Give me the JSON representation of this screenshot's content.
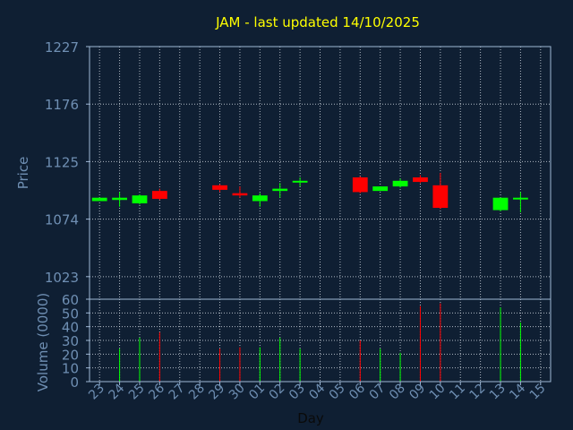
{
  "chart_data": {
    "type": "candlestick",
    "title": "JAM - last updated 14/10/2025",
    "xlabel": "Day",
    "ylabel_price": "Price",
    "ylabel_volume": "Volume (0000)",
    "price_ticks": [
      1023,
      1074,
      1125,
      1176,
      1227
    ],
    "price_ylim": [
      1003,
      1227
    ],
    "volume_ticks": [
      0,
      10,
      20,
      30,
      40,
      50,
      60
    ],
    "volume_ylim": [
      0,
      60
    ],
    "x_tick_labels": [
      "23",
      "24",
      "25",
      "26",
      "27",
      "28",
      "29",
      "30",
      "01",
      "02",
      "03",
      "04",
      "05",
      "06",
      "07",
      "08",
      "09",
      "10",
      "11",
      "12",
      "13",
      "14",
      "15"
    ],
    "grid": true,
    "colors": {
      "up": "#00ff00",
      "down": "#ff0000",
      "background": "#0f1f33",
      "title": "#ffff00",
      "axis_text": "#6f8fb3",
      "frame": "#9fb8d6"
    },
    "candles": [
      {
        "day": "23",
        "open": 1090,
        "close": 1093,
        "high": 1093,
        "low": 1090,
        "volume": 0
      },
      {
        "day": "24",
        "open": 1091,
        "close": 1093,
        "high": 1098,
        "low": 1085,
        "volume": 24
      },
      {
        "day": "25",
        "open": 1088,
        "close": 1095,
        "high": 1096,
        "low": 1087,
        "volume": 32
      },
      {
        "day": "26",
        "open": 1099,
        "close": 1092,
        "high": 1101,
        "low": 1091,
        "volume": 36
      },
      {
        "day": "29",
        "open": 1104,
        "close": 1100,
        "high": 1105,
        "low": 1098,
        "volume": 24
      },
      {
        "day": "30",
        "open": 1097,
        "close": 1095,
        "high": 1103,
        "low": 1093,
        "volume": 25
      },
      {
        "day": "01",
        "open": 1090,
        "close": 1095,
        "high": 1097,
        "low": 1085,
        "volume": 25
      },
      {
        "day": "02",
        "open": 1099,
        "close": 1101,
        "high": 1106,
        "low": 1093,
        "volume": 32
      },
      {
        "day": "03",
        "open": 1107,
        "close": 1108,
        "high": 1111,
        "low": 1103,
        "volume": 24
      },
      {
        "day": "06",
        "open": 1111,
        "close": 1098,
        "high": 1112,
        "low": 1097,
        "volume": 30
      },
      {
        "day": "07",
        "open": 1099,
        "close": 1103,
        "high": 1103,
        "low": 1099,
        "volume": 24
      },
      {
        "day": "08",
        "open": 1103,
        "close": 1108,
        "high": 1110,
        "low": 1102,
        "volume": 21
      },
      {
        "day": "09",
        "open": 1111,
        "close": 1107,
        "high": 1113,
        "low": 1106,
        "volume": 55
      },
      {
        "day": "10",
        "open": 1104,
        "close": 1084,
        "high": 1115,
        "low": 1083,
        "volume": 57
      },
      {
        "day": "13",
        "open": 1082,
        "close": 1093,
        "high": 1093,
        "low": 1081,
        "volume": 54
      },
      {
        "day": "14",
        "open": 1092,
        "close": 1093,
        "high": 1098,
        "low": 1080,
        "volume": 43
      }
    ]
  }
}
